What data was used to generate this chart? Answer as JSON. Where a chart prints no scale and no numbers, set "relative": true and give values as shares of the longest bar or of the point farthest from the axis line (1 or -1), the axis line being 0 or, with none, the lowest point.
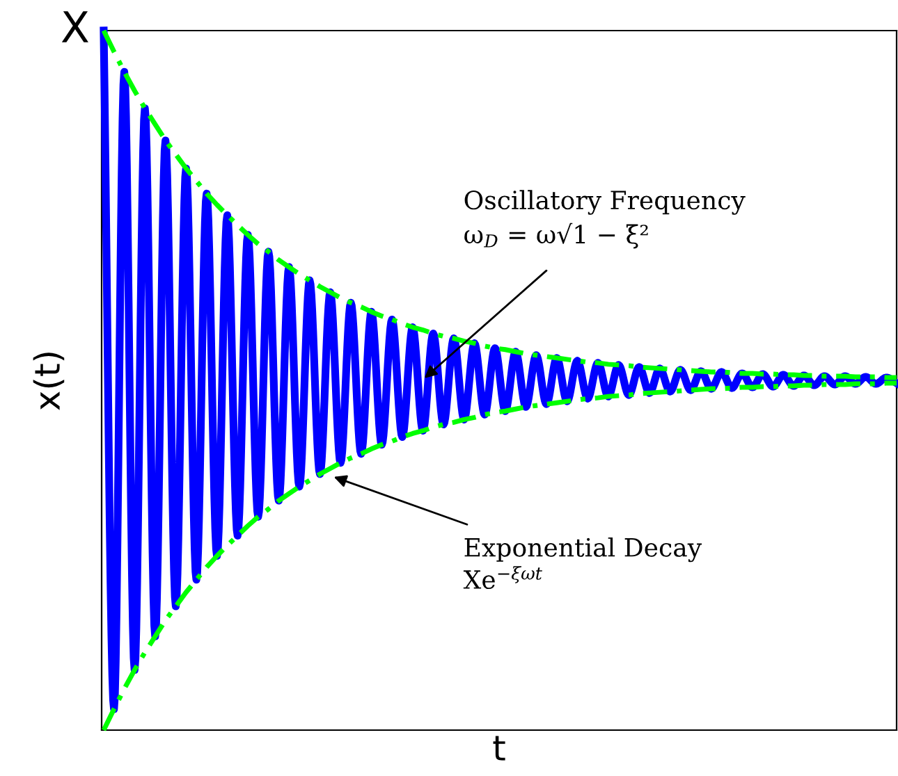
{
  "chart_data": {
    "type": "line",
    "relative": true,
    "xlabel": "t",
    "ylabel": "x(t)",
    "legend": false,
    "marker": "none",
    "categories": [
      null,
      null,
      null,
      null,
      null,
      null,
      null,
      null,
      null,
      null,
      null,
      null,
      null,
      null,
      null,
      null,
      null,
      null,
      null,
      null,
      null,
      null,
      null,
      null,
      null,
      null,
      null,
      null,
      null,
      null,
      null,
      null,
      null,
      null,
      null,
      null,
      null,
      null,
      null,
      null,
      null,
      null,
      null,
      null,
      null,
      null,
      null,
      null,
      null,
      null,
      null,
      null,
      null,
      null,
      null,
      null,
      null,
      null,
      null,
      null,
      null,
      null,
      null,
      null,
      null,
      null,
      null,
      null,
      null,
      null,
      null,
      null,
      null,
      null,
      null,
      null,
      null,
      null
    ],
    "series": [
      {
        "color": "#0000ff",
        "line_style": "solid",
        "values": [
          1.0,
          0.03,
          0.941,
          0.086,
          0.889,
          0.134,
          0.843,
          0.177,
          0.803,
          0.215,
          0.767,
          0.249,
          0.736,
          0.278,
          0.708,
          0.305,
          0.684,
          0.328,
          0.662,
          0.348,
          0.643,
          0.366,
          0.626,
          0.382,
          0.611,
          0.395,
          0.598,
          0.408,
          0.587,
          0.419,
          0.576,
          0.428,
          0.567,
          0.437,
          0.56,
          0.444,
          0.553,
          0.451,
          0.546,
          0.456,
          0.541,
          0.462,
          0.536,
          0.466,
          0.532,
          0.47,
          0.528,
          0.474,
          0.525,
          0.477,
          0.522,
          0.479,
          0.519,
          0.482,
          0.517,
          0.484,
          0.515,
          0.486,
          0.513,
          0.488,
          0.512,
          0.489,
          0.51,
          0.49,
          0.509,
          0.491,
          0.508,
          0.492,
          0.507,
          0.493,
          0.506,
          0.494,
          0.506,
          0.495,
          0.505,
          0.495,
          0.504,
          0.496
        ]
      },
      {
        "color": "#00ff00",
        "line_style": "dashed",
        "values": [
          1.0,
          0.97,
          0.941,
          0.914,
          0.889,
          0.866,
          0.843,
          0.823,
          0.803,
          0.785,
          0.767,
          0.751,
          0.736,
          0.722,
          0.708,
          0.695,
          0.684,
          0.672,
          0.662,
          0.652,
          0.643,
          0.634,
          0.626,
          0.618,
          0.611,
          0.605,
          0.598,
          0.592,
          0.587,
          0.581,
          0.576,
          0.572,
          0.567,
          0.563,
          0.56,
          0.556,
          0.553,
          0.549,
          0.546,
          0.544,
          0.541,
          0.538,
          0.536,
          0.534,
          0.532,
          0.53,
          0.528,
          0.526,
          0.525,
          0.523,
          0.522,
          0.521,
          0.519,
          0.518,
          0.517,
          0.516,
          0.515,
          0.514,
          0.513,
          0.512,
          0.512,
          0.511,
          0.51,
          0.51,
          0.509,
          0.509,
          0.508,
          0.508,
          0.507,
          0.507,
          0.506,
          0.506,
          0.506,
          0.505,
          0.505,
          0.505,
          0.504,
          0.504
        ]
      },
      {
        "color": "#00ff00",
        "line_style": "dashed",
        "values": [
          0.0,
          0.03,
          0.059,
          0.086,
          0.111,
          0.134,
          0.157,
          0.177,
          0.197,
          0.215,
          0.233,
          0.249,
          0.264,
          0.278,
          0.292,
          0.305,
          0.316,
          0.328,
          0.338,
          0.348,
          0.357,
          0.366,
          0.374,
          0.382,
          0.389,
          0.395,
          0.402,
          0.408,
          0.413,
          0.419,
          0.424,
          0.428,
          0.433,
          0.437,
          0.44,
          0.444,
          0.447,
          0.451,
          0.454,
          0.456,
          0.459,
          0.462,
          0.464,
          0.466,
          0.468,
          0.47,
          0.472,
          0.474,
          0.475,
          0.477,
          0.478,
          0.479,
          0.481,
          0.482,
          0.483,
          0.484,
          0.485,
          0.486,
          0.487,
          0.488,
          0.488,
          0.489,
          0.49,
          0.49,
          0.491,
          0.491,
          0.492,
          0.492,
          0.493,
          0.493,
          0.494,
          0.494,
          0.494,
          0.495,
          0.495,
          0.495,
          0.496,
          0.496
        ]
      }
    ],
    "annotations": [
      "X",
      "Oscillatory Frequency\nω$_{D}$ = ω√1 − ξ²",
      "Exponential Decay\nXe$^{−ξωt}$"
    ]
  }
}
